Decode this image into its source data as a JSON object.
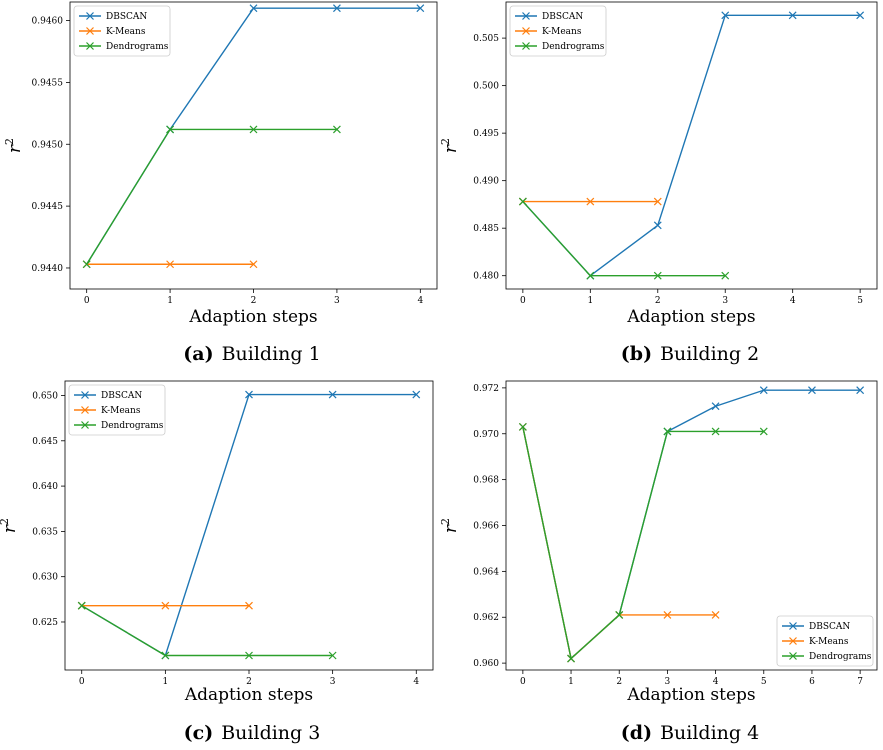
{
  "chart_data": [
    {
      "type": "line",
      "label_prefix": "(a)",
      "caption": "Building 1",
      "xlabel": "Adaption steps",
      "ylabel": "r",
      "ylabel_sup": "2",
      "xlim": [
        -0.2,
        4.2
      ],
      "ylim": [
        0.94383,
        0.94615
      ],
      "xticks": [
        0,
        1,
        2,
        3,
        4
      ],
      "yticks": [
        0.944,
        0.9445,
        0.945,
        0.9455,
        0.946
      ],
      "ytick_labels": [
        "0.9440",
        "0.9445",
        "0.9450",
        "0.9455",
        "0.9460"
      ],
      "legend_position": "top-left",
      "series": [
        {
          "name": "DBSCAN",
          "color": "#1f77b4",
          "x": [
            0,
            1,
            2,
            3,
            4
          ],
          "y": [
            0.94403,
            0.94512,
            0.9461,
            0.9461,
            0.9461
          ]
        },
        {
          "name": "K-Means",
          "color": "#ff7f0e",
          "x": [
            0,
            1,
            2
          ],
          "y": [
            0.94403,
            0.94403,
            0.94403
          ]
        },
        {
          "name": "Dendrograms",
          "color": "#2ca02c",
          "x": [
            0,
            1,
            2,
            3
          ],
          "y": [
            0.94403,
            0.94512,
            0.94512,
            0.94512
          ]
        }
      ]
    },
    {
      "type": "line",
      "label_prefix": "(b)",
      "caption": "Building 2",
      "xlabel": "Adaption steps",
      "ylabel": "r",
      "ylabel_sup": "2",
      "xlim": [
        -0.25,
        5.25
      ],
      "ylim": [
        0.4786,
        0.5088
      ],
      "xticks": [
        0,
        1,
        2,
        3,
        4,
        5
      ],
      "yticks": [
        0.48,
        0.485,
        0.49,
        0.495,
        0.5,
        0.505
      ],
      "ytick_labels": [
        "0.480",
        "0.485",
        "0.490",
        "0.495",
        "0.500",
        "0.505"
      ],
      "legend_position": "top-left",
      "series": [
        {
          "name": "DBSCAN",
          "color": "#1f77b4",
          "x": [
            0,
            1,
            2,
            3,
            4,
            5
          ],
          "y": [
            0.4878,
            0.48,
            0.4853,
            0.5074,
            0.5074,
            0.5074
          ]
        },
        {
          "name": "K-Means",
          "color": "#ff7f0e",
          "x": [
            0,
            1,
            2
          ],
          "y": [
            0.4878,
            0.4878,
            0.4878
          ]
        },
        {
          "name": "Dendrograms",
          "color": "#2ca02c",
          "x": [
            0,
            1,
            2,
            3
          ],
          "y": [
            0.4878,
            0.48,
            0.48,
            0.48
          ]
        }
      ]
    },
    {
      "type": "line",
      "label_prefix": "(c)",
      "caption": "Building 3",
      "xlabel": "Adaption steps",
      "ylabel": "r",
      "ylabel_sup": "2",
      "xlim": [
        -0.2,
        4.2
      ],
      "ylim": [
        0.6197,
        0.6516
      ],
      "xticks": [
        0,
        1,
        2,
        3,
        4
      ],
      "yticks": [
        0.625,
        0.63,
        0.635,
        0.64,
        0.645,
        0.65
      ],
      "ytick_labels": [
        "0.625",
        "0.630",
        "0.635",
        "0.640",
        "0.645",
        "0.650"
      ],
      "legend_position": "top-left",
      "series": [
        {
          "name": "DBSCAN",
          "color": "#1f77b4",
          "x": [
            0,
            1,
            2,
            3,
            4
          ],
          "y": [
            0.6268,
            0.6213,
            0.6501,
            0.6501,
            0.6501
          ]
        },
        {
          "name": "K-Means",
          "color": "#ff7f0e",
          "x": [
            0,
            1,
            2
          ],
          "y": [
            0.6268,
            0.6268,
            0.6268
          ]
        },
        {
          "name": "Dendrograms",
          "color": "#2ca02c",
          "x": [
            0,
            1,
            2,
            3
          ],
          "y": [
            0.6268,
            0.6213,
            0.6213,
            0.6213
          ]
        }
      ]
    },
    {
      "type": "line",
      "label_prefix": "(d)",
      "caption": "Building 4",
      "xlabel": "Adaption steps",
      "ylabel": "r",
      "ylabel_sup": "2",
      "xlim": [
        -0.35,
        7.35
      ],
      "ylim": [
        0.9597,
        0.9723
      ],
      "xticks": [
        0,
        1,
        2,
        3,
        4,
        5,
        6,
        7
      ],
      "yticks": [
        0.96,
        0.962,
        0.964,
        0.966,
        0.968,
        0.97,
        0.972
      ],
      "ytick_labels": [
        "0.960",
        "0.962",
        "0.964",
        "0.966",
        "0.968",
        "0.970",
        "0.972"
      ],
      "legend_position": "bottom-right",
      "series": [
        {
          "name": "DBSCAN",
          "color": "#1f77b4",
          "x": [
            0,
            1,
            2,
            3,
            4,
            5,
            6,
            7
          ],
          "y": [
            0.9703,
            0.9602,
            0.9621,
            0.9701,
            0.9712,
            0.9719,
            0.9719,
            0.9719
          ]
        },
        {
          "name": "K-Means",
          "color": "#ff7f0e",
          "x": [
            0,
            1,
            2,
            3,
            4
          ],
          "y": [
            0.9703,
            0.9602,
            0.9621,
            0.9621,
            0.9621
          ]
        },
        {
          "name": "Dendrograms",
          "color": "#2ca02c",
          "x": [
            0,
            1,
            2,
            3,
            4,
            5
          ],
          "y": [
            0.9703,
            0.9602,
            0.9621,
            0.9701,
            0.9701,
            0.9701
          ]
        }
      ]
    }
  ]
}
